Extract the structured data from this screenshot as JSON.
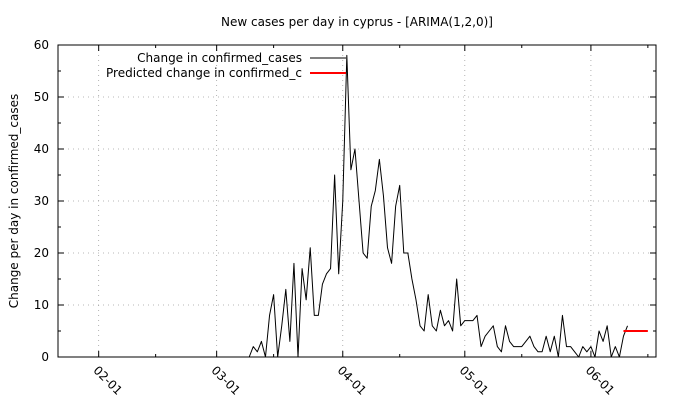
{
  "chart_data": {
    "type": "line",
    "title": "New cases per day in cyprus -  [ARIMA(1,2,0)]",
    "xlabel": "",
    "ylabel": "Change per day in confirmed_cases",
    "ylim": [
      0,
      60
    ],
    "xlim": [
      "2020-01-22",
      "2020-06-17"
    ],
    "grid": true,
    "legend_position": "top-left",
    "y_ticks": [
      "0",
      "10",
      "20",
      "30",
      "40",
      "50",
      "60"
    ],
    "x_ticks": [
      {
        "date": "2020-02-01",
        "label": "02-01"
      },
      {
        "date": "2020-03-01",
        "label": "03-01"
      },
      {
        "date": "2020-04-01",
        "label": "04-01"
      },
      {
        "date": "2020-05-01",
        "label": "05-01"
      },
      {
        "date": "2020-06-01",
        "label": "06-01"
      }
    ],
    "series": [
      {
        "name": "Change in confirmed_cases",
        "color": "#000000",
        "start_date": "2020-03-09",
        "values": [
          0,
          2,
          1,
          3,
          0,
          8,
          12,
          0,
          6,
          13,
          3,
          18,
          0,
          17,
          11,
          21,
          8,
          8,
          14,
          16,
          17,
          35,
          16,
          30,
          58,
          36,
          40,
          30,
          20,
          19,
          29,
          32,
          38,
          31,
          21,
          18,
          29,
          33,
          20,
          20,
          15,
          11,
          6,
          5,
          12,
          6,
          5,
          9,
          6,
          7,
          5,
          15,
          6,
          7,
          7,
          7,
          8,
          2,
          4,
          5,
          6,
          2,
          1,
          6,
          3,
          2,
          2,
          2,
          3,
          4,
          2,
          1,
          1,
          4,
          1,
          4,
          0,
          8,
          2,
          2,
          1,
          0,
          2,
          1,
          2,
          0,
          5,
          3,
          6,
          0,
          2,
          0,
          4,
          6
        ]
      },
      {
        "name": "Predicted change in confirmed_c",
        "color": "#ff0000",
        "start_date": "2020-06-09",
        "values": [
          5,
          5,
          5,
          5,
          5,
          5,
          5
        ]
      }
    ]
  }
}
